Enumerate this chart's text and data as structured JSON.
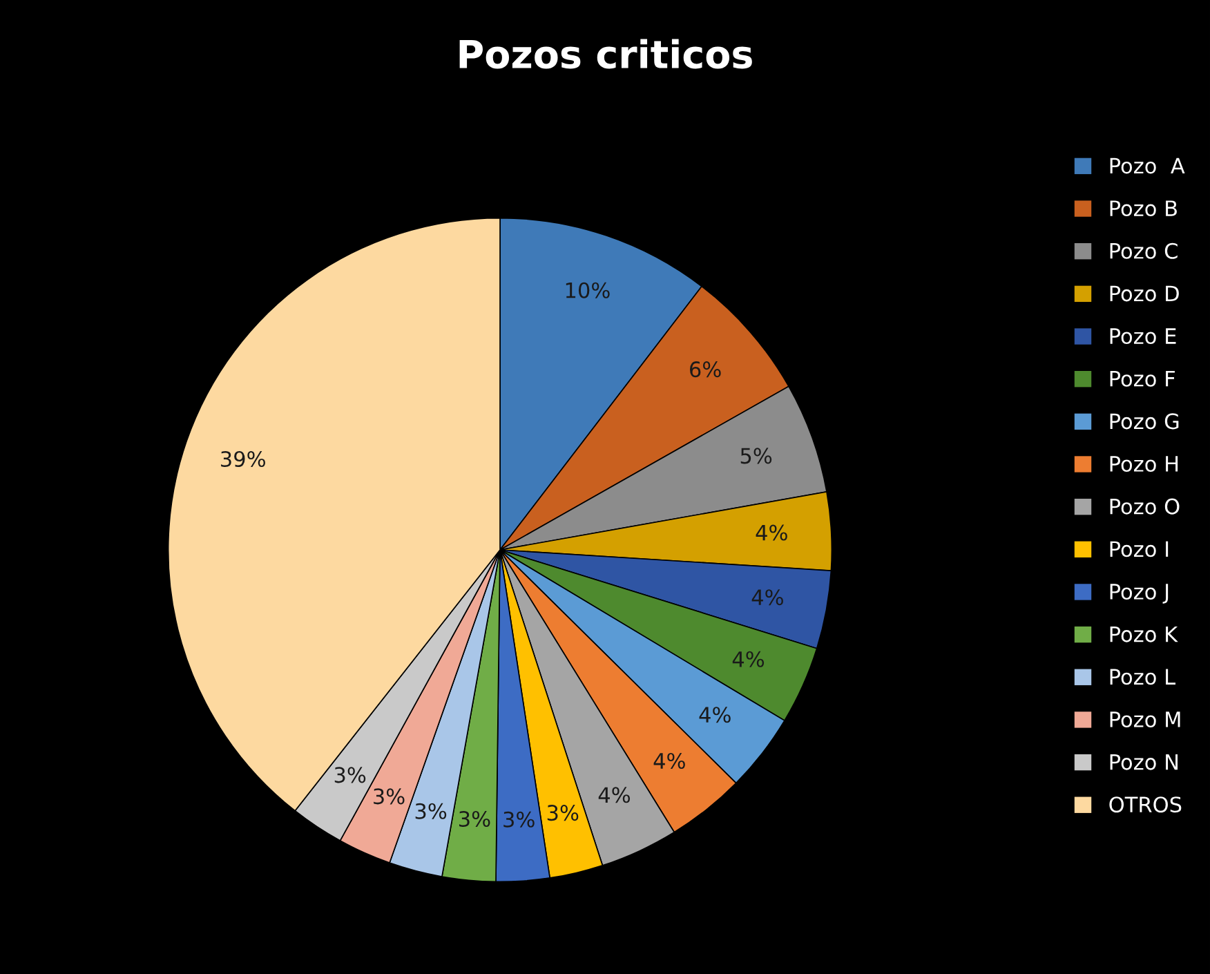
{
  "chart_data": {
    "type": "pie",
    "title": "Pozos criticos",
    "categories": [
      "Pozo  A",
      "Pozo B",
      "Pozo C",
      "Pozo D",
      "Pozo E",
      "Pozo F",
      "Pozo G",
      "Pozo H",
      "Pozo O",
      "Pozo I",
      "Pozo J",
      "Pozo K",
      "Pozo L",
      "Pozo M",
      "Pozo N",
      "OTROS"
    ],
    "values": [
      10.4,
      6.4,
      5.4,
      3.8,
      3.8,
      3.8,
      3.8,
      3.8,
      3.8,
      2.6,
      2.6,
      2.6,
      2.6,
      2.6,
      2.6,
      39.4
    ],
    "value_labels": [
      "10%",
      "6%",
      "5%",
      "4%",
      "4%",
      "4%",
      "4%",
      "4%",
      "4%",
      "3%",
      "3%",
      "3%",
      "3%",
      "3%",
      "3%",
      "39%"
    ],
    "colors": [
      "#3f7ab8",
      "#c9601f",
      "#8c8c8c",
      "#d4a000",
      "#2f55a4",
      "#4e8a2e",
      "#5b9bd5",
      "#ed7d31",
      "#a5a5a5",
      "#ffc000",
      "#3d6cc4",
      "#70ad47",
      "#a9c6e8",
      "#f0a996",
      "#c9c9c9",
      "#fdd9a0"
    ],
    "legend": "right"
  }
}
